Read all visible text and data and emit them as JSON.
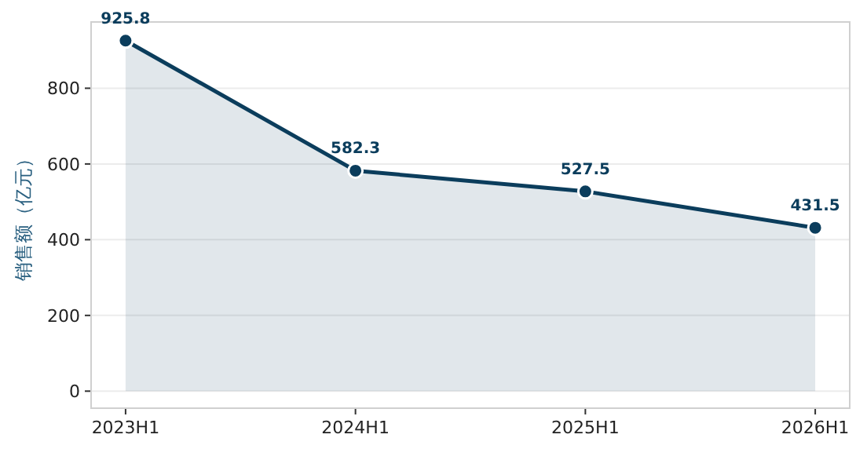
{
  "chart_data": {
    "type": "area",
    "ylabel": "销售额（亿元）",
    "categories": [
      "2023H1",
      "2024H1",
      "2025H1",
      "2026H1"
    ],
    "series": [
      {
        "color": "#0b3d5c",
        "values": [
          925.8,
          582.3,
          527.5,
          431.5
        ]
      }
    ],
    "ylim": [
      -45,
      975
    ],
    "yticks": [
      0,
      200,
      400,
      600,
      800
    ],
    "grid": "y",
    "marker": "circle",
    "data_labels": true
  }
}
